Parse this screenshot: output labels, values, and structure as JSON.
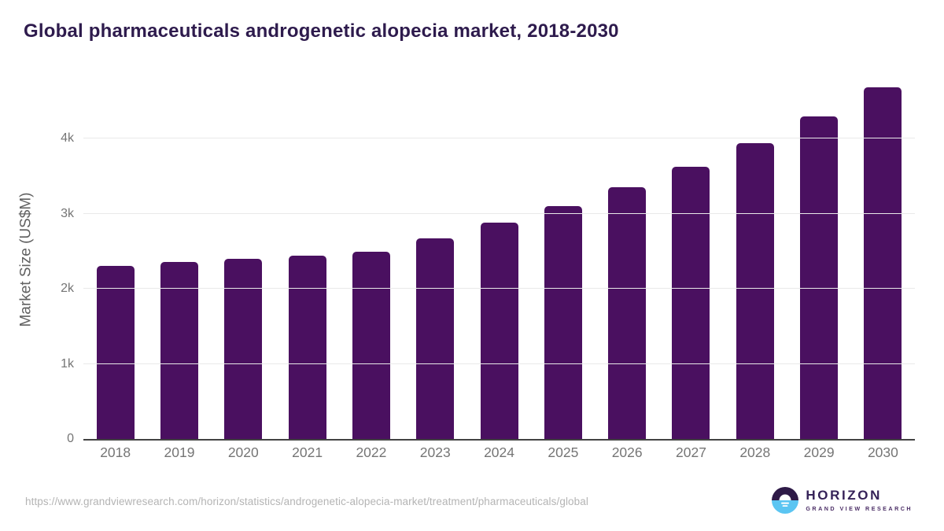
{
  "title": "Global pharmaceuticals androgenetic alopecia market, 2018-2030",
  "chart_data": {
    "type": "bar",
    "categories": [
      "2018",
      "2019",
      "2020",
      "2021",
      "2022",
      "2023",
      "2024",
      "2025",
      "2026",
      "2027",
      "2028",
      "2029",
      "2030"
    ],
    "values": [
      2310,
      2360,
      2400,
      2440,
      2500,
      2670,
      2880,
      3100,
      3350,
      3630,
      3940,
      4300,
      4680
    ],
    "title": "Global pharmaceuticals androgenetic alopecia market, 2018-2030",
    "xlabel": "",
    "ylabel": "Market Size (US$M)",
    "ylim": [
      0,
      4800
    ],
    "yticks": [
      {
        "value": 0,
        "label": "0"
      },
      {
        "value": 1000,
        "label": "1k"
      },
      {
        "value": 2000,
        "label": "2k"
      },
      {
        "value": 3000,
        "label": "3k"
      },
      {
        "value": 4000,
        "label": "4k"
      }
    ],
    "grid": true,
    "legend": "none",
    "bar_color": "#4a1060"
  },
  "footer": {
    "source_url": "https://www.grandviewresearch.com/horizon/statistics/androgenetic-alopecia-market/treatment/pharmaceuticals/global",
    "logo": {
      "brand": "HORIZON",
      "sub_brand": "GRAND VIEW RESEARCH",
      "icon": "sun-horizon-icon",
      "colors": {
        "top": "#2e1a47",
        "bottom": "#5bc5f2",
        "sun": "#ffffff"
      }
    }
  },
  "colors": {
    "title": "#2e1b4d",
    "bar": "#4a1060",
    "axis_text": "#757575",
    "gridline": "#e9e9e9",
    "baseline": "#424242",
    "url_text": "#b4b4b4"
  }
}
